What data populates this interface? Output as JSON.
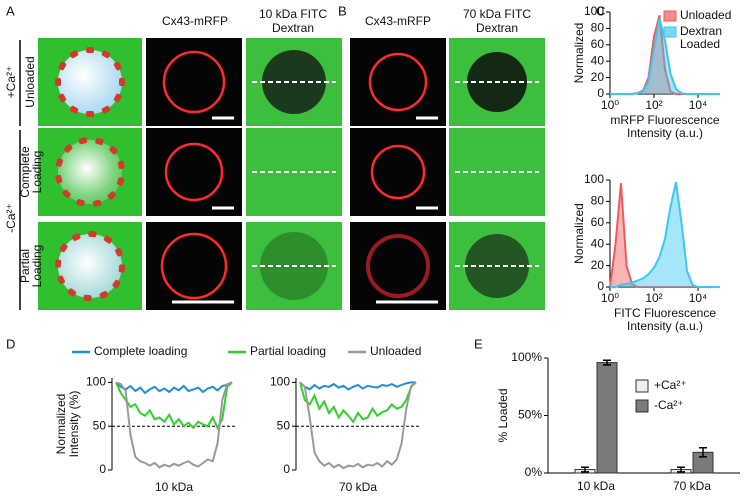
{
  "panel_labels": [
    "A",
    "B",
    "C",
    "D",
    "E"
  ],
  "panel_a": {
    "columns": [
      [
        "Cx43-mRFP"
      ],
      [
        "10 kDa FITC",
        "Dextran"
      ]
    ]
  },
  "panel_b": {
    "columns": [
      [
        "Cx43-mRFP"
      ],
      [
        "70 kDa FITC",
        "Dextran"
      ]
    ]
  },
  "rows": {
    "groups": [
      "+Ca²⁺",
      "-Ca²⁺"
    ],
    "conditions": [
      [
        "Unloaded"
      ],
      [
        "Complete",
        "Loading"
      ],
      [
        "Partial",
        "Loading"
      ]
    ]
  },
  "chart_data": [
    {
      "type": "histogram",
      "ylabel": "Normalized",
      "xlabel": [
        "mRFP Fluorescence",
        "Intensity (a.u.)"
      ],
      "xscale": "log",
      "xlim": [
        1,
        100000
      ],
      "xticks": [
        {
          "value": 1,
          "label": "10⁰"
        },
        {
          "value": 100,
          "label": "10²"
        },
        {
          "value": 10000,
          "label": "10⁴"
        }
      ],
      "ylim": [
        0,
        100
      ],
      "yticks": [
        0,
        20,
        40,
        60,
        80,
        100
      ],
      "x": [
        1,
        1.78,
        3.16,
        5.62,
        10,
        17.8,
        31.6,
        56.2,
        100,
        178,
        316,
        562,
        1000,
        1778,
        3162,
        5623,
        10000,
        17783,
        31623,
        56234,
        100000
      ],
      "series": [
        {
          "name": "Unloaded",
          "color": "#f05a5a",
          "values": [
            0,
            0,
            0,
            0,
            0,
            1,
            4,
            20,
            70,
            96,
            30,
            3,
            0,
            0,
            0,
            0,
            0,
            0,
            0,
            0,
            0
          ]
        },
        {
          "name": "Dextran Loaded",
          "color": "#3cc8f0",
          "values": [
            0,
            0,
            0,
            0,
            0,
            1,
            3,
            15,
            55,
            92,
            65,
            25,
            6,
            1,
            0,
            0,
            0,
            0,
            0,
            0,
            0
          ]
        }
      ]
    },
    {
      "type": "histogram",
      "ylabel": "Normalized",
      "xlabel": [
        "FITC Fluorescence",
        "Intensity (a.u.)"
      ],
      "xscale": "log",
      "xlim": [
        1,
        100000
      ],
      "xticks": [
        {
          "value": 1,
          "label": "10⁰"
        },
        {
          "value": 100,
          "label": "10²"
        },
        {
          "value": 10000,
          "label": "10⁴"
        }
      ],
      "ylim": [
        0,
        100
      ],
      "yticks": [
        0,
        20,
        40,
        60,
        80,
        100
      ],
      "x": [
        1,
        1.78,
        3.16,
        5.62,
        10,
        17.8,
        31.6,
        56.2,
        100,
        178,
        316,
        562,
        1000,
        1778,
        3162,
        5623,
        10000,
        17783,
        31623,
        56234,
        100000
      ],
      "series": [
        {
          "values": [
            0,
            40,
            97,
            20,
            3,
            0,
            0,
            0,
            0,
            0,
            0,
            0,
            0,
            0,
            0,
            0,
            0,
            0,
            0,
            0,
            0
          ]
        },
        {
          "values": [
            0,
            0,
            2,
            3,
            4,
            6,
            8,
            12,
            18,
            28,
            45,
            75,
            98,
            60,
            15,
            2,
            0,
            0,
            0,
            0,
            0
          ]
        }
      ]
    },
    {
      "type": "line",
      "ylabel": [
        "Normalized",
        "Intensity (%)"
      ],
      "xlabel": "10 kDa",
      "ylim": [
        0,
        105
      ],
      "yticks": [
        0,
        50,
        100
      ],
      "ref_line": 50,
      "series": [
        {
          "name": "Complete loading",
          "color": "#1f8fd6",
          "values": [
            100,
            95,
            92,
            96,
            90,
            94,
            88,
            92,
            95,
            90,
            93,
            89,
            94,
            91,
            96,
            90,
            92,
            94,
            89,
            93,
            95,
            91,
            96,
            97,
            100
          ]
        },
        {
          "name": "Partial loading",
          "color": "#2fd22a",
          "values": [
            100,
            88,
            80,
            72,
            75,
            65,
            62,
            68,
            58,
            60,
            55,
            63,
            52,
            58,
            50,
            54,
            48,
            55,
            52,
            50,
            60,
            48,
            58,
            95,
            100
          ]
        },
        {
          "name": "Unloaded",
          "color": "#9a9a9a",
          "values": [
            100,
            98,
            90,
            40,
            15,
            10,
            8,
            5,
            8,
            3,
            6,
            4,
            7,
            5,
            8,
            10,
            6,
            4,
            8,
            12,
            10,
            30,
            80,
            98,
            100
          ]
        }
      ]
    },
    {
      "type": "line",
      "xlabel": "70 kDa",
      "ylim": [
        0,
        105
      ],
      "yticks": [
        0,
        50,
        100
      ],
      "ref_line": 50,
      "series": [
        {
          "values": [
            100,
            95,
            92,
            97,
            93,
            96,
            95,
            98,
            94,
            96,
            92,
            95,
            97,
            93,
            96,
            95,
            94,
            97,
            96,
            98,
            95,
            97,
            99,
            100,
            100
          ]
        },
        {
          "values": [
            100,
            80,
            75,
            85,
            70,
            78,
            65,
            72,
            60,
            68,
            62,
            55,
            65,
            58,
            60,
            70,
            62,
            66,
            68,
            75,
            70,
            72,
            80,
            95,
            100
          ]
        },
        {
          "values": [
            100,
            95,
            60,
            20,
            10,
            5,
            8,
            3,
            6,
            2,
            5,
            4,
            7,
            3,
            6,
            5,
            8,
            4,
            10,
            6,
            12,
            30,
            70,
            96,
            100
          ]
        }
      ]
    },
    {
      "type": "bar",
      "ylabel": "% Loaded",
      "categories": [
        "10 kDa",
        "70 kDa"
      ],
      "ylim": [
        0,
        100
      ],
      "yticks": [
        {
          "value": 0,
          "label": "0%"
        },
        {
          "value": 50,
          "label": "50%"
        },
        {
          "value": 100,
          "label": "100%"
        }
      ],
      "series": [
        {
          "name": "+Ca²⁺",
          "color": "#eeeeee",
          "values": [
            3,
            3
          ],
          "errors": [
            2,
            2
          ]
        },
        {
          "name": "-Ca²⁺",
          "color": "#7a7a7a",
          "values": [
            96,
            18
          ],
          "errors": [
            2,
            4
          ]
        }
      ]
    }
  ]
}
